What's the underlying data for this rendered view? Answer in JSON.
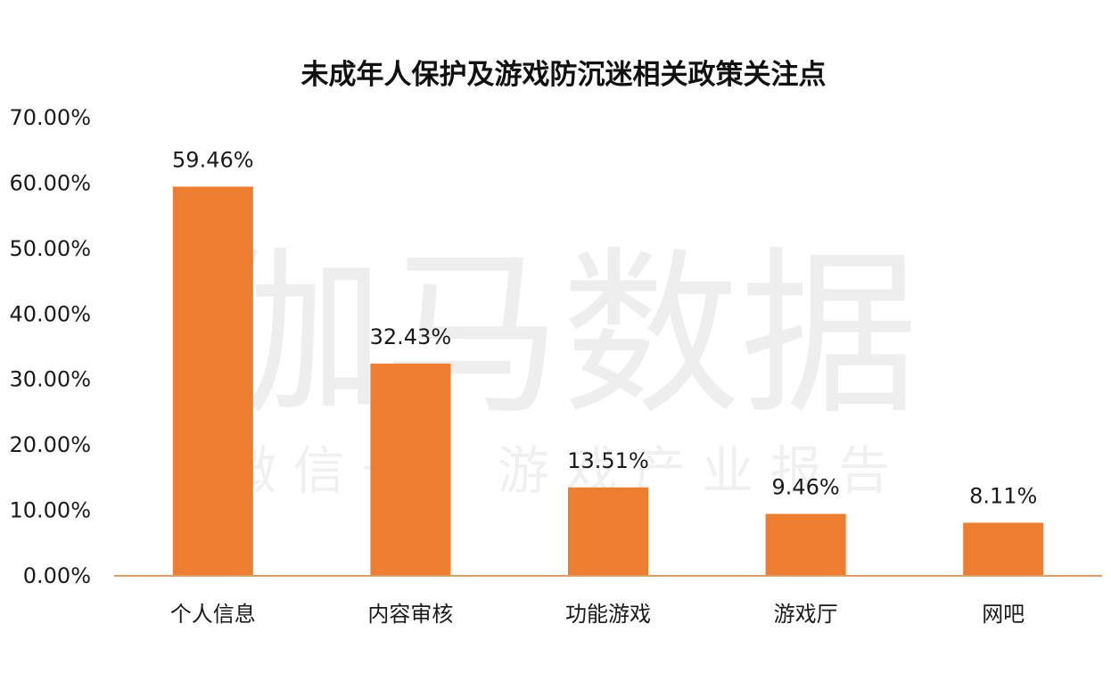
{
  "chart_data": {
    "type": "bar",
    "title": "未成年人保护及游戏防沉迷相关政策关注点",
    "xlabel": "",
    "ylabel": "",
    "categories": [
      "个人信息",
      "内容审核",
      "功能游戏",
      "游戏厅",
      "网吧"
    ],
    "values": [
      59.46,
      32.43,
      13.51,
      9.46,
      8.11
    ],
    "data_labels": [
      "59.46%",
      "32.43%",
      "13.51%",
      "9.46%",
      "8.11%"
    ],
    "ylim": [
      0,
      70
    ],
    "y_ticks": [
      0,
      10,
      20,
      30,
      40,
      50,
      60,
      70
    ],
    "y_tick_labels": [
      "0.00%",
      "10.00%",
      "20.00%",
      "30.00%",
      "40.00%",
      "50.00%",
      "60.00%",
      "70.00%"
    ],
    "grid": false,
    "legend": "none",
    "colors": {
      "bar": "#ED7D31",
      "axis": "#D9A066"
    }
  },
  "watermark": {
    "main": "伽马数据",
    "sub": "微 信 号 ： 游 戏 产 业 报 告"
  }
}
